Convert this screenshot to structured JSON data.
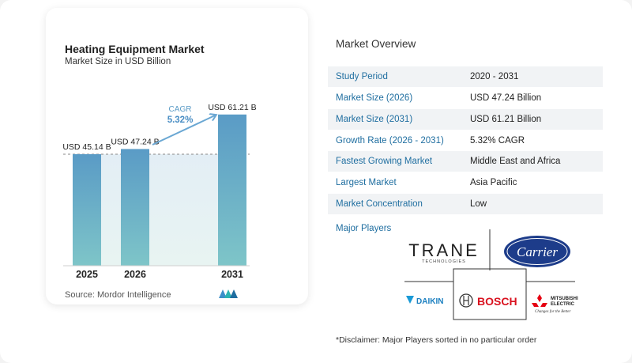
{
  "chart": {
    "title": "Heating Equipment Market",
    "subtitle": "Market Size in USD Billion",
    "source": "Source:  Mordor Intelligence",
    "cagr_label": "CAGR",
    "cagr_value": "5.32%"
  },
  "chart_data": {
    "type": "bar",
    "categories": [
      "2025",
      "2026",
      "2031"
    ],
    "values": [
      45.14,
      47.24,
      61.21
    ],
    "data_labels": [
      "USD 45.14 B",
      "USD 47.24 B",
      "USD 61.21 B"
    ],
    "title": "Heating Equipment Market",
    "subtitle": "Market Size in USD Billion",
    "xlabel": "",
    "ylabel": "",
    "ylim": [
      0,
      62
    ],
    "annotations": [
      "CAGR",
      "5.32%"
    ],
    "colors": {
      "bar_top": "#5a9bc6",
      "bar_bottom": "#7ec5c8",
      "arrow": "#6aa7d3",
      "cagr_text": "#4a8ec4"
    }
  },
  "overview": {
    "title": "Market Overview",
    "rows": [
      {
        "label": "Study Period",
        "value": "2020 - 2031"
      },
      {
        "label": "Market Size (2026)",
        "value": "USD 47.24 Billion"
      },
      {
        "label": "Market Size (2031)",
        "value": "USD 61.21 Billion"
      },
      {
        "label": "Growth Rate (2026 - 2031)",
        "value": "5.32% CAGR"
      },
      {
        "label": "Fastest Growing Market",
        "value": "Middle East and Africa"
      },
      {
        "label": "Largest Market",
        "value": "Asia Pacific"
      },
      {
        "label": "Market Concentration",
        "value": "Low"
      }
    ],
    "players_title": "Major Players",
    "players": {
      "trane": "TRANE",
      "trane_sub": "TECHNOLOGIES",
      "carrier": "Carrier",
      "daikin": "DAIKIN",
      "bosch": "BOSCH",
      "mitsubishi_1": "MITSUBISHI",
      "mitsubishi_2": "ELECTRIC",
      "mitsubishi_tag": "Changes for the Better"
    },
    "disclaimer": "*Disclaimer: Major Players sorted in no particular order"
  }
}
